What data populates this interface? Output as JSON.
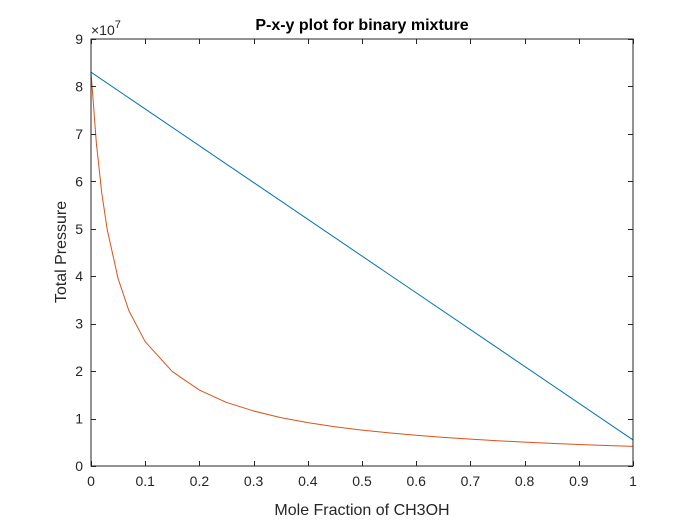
{
  "chart_data": {
    "type": "line",
    "title": "P-x-y plot for binary mixture",
    "xlabel": "Mole Fraction of CH3OH",
    "ylabel": "Total Pressure",
    "y_exponent_label": "×10",
    "y_exponent_power": "7",
    "y_scale": 10000000,
    "xlim": [
      0,
      1
    ],
    "ylim": [
      0,
      90000000
    ],
    "x_ticks": [
      0,
      0.1,
      0.2,
      0.3,
      0.4,
      0.5,
      0.6,
      0.7,
      0.8,
      0.9,
      1
    ],
    "x_tick_labels": [
      "0",
      "0.1",
      "0.2",
      "0.3",
      "0.4",
      "0.5",
      "0.6",
      "0.7",
      "0.8",
      "0.9",
      "1"
    ],
    "y_ticks": [
      0,
      10000000,
      20000000,
      30000000,
      40000000,
      50000000,
      60000000,
      70000000,
      80000000,
      90000000
    ],
    "y_tick_labels": [
      "0",
      "1",
      "2",
      "3",
      "4",
      "5",
      "6",
      "7",
      "8",
      "9"
    ],
    "grid": false,
    "series": [
      {
        "color": "#0072BD",
        "x": [
          0,
          1
        ],
        "y": [
          83000000,
          5500000
        ]
      },
      {
        "color": "#D95319",
        "x": [
          0,
          0.01,
          0.02,
          0.03,
          0.05,
          0.07,
          0.1,
          0.15,
          0.2,
          0.25,
          0.3,
          0.35,
          0.4,
          0.45,
          0.5,
          0.55,
          0.6,
          0.65,
          0.7,
          0.75,
          0.8,
          0.85,
          0.9,
          0.95,
          1
        ],
        "y": [
          83000000,
          67900000,
          57400000,
          49800000,
          39500000,
          32700000,
          26200000,
          19900000,
          16000000,
          13400000,
          11600000,
          10200000,
          9140000,
          8280000,
          7570000,
          6980000,
          6470000,
          6040000,
          5660000,
          5330000,
          5030000,
          4770000,
          4530000,
          4320000,
          4130000
        ]
      }
    ]
  }
}
